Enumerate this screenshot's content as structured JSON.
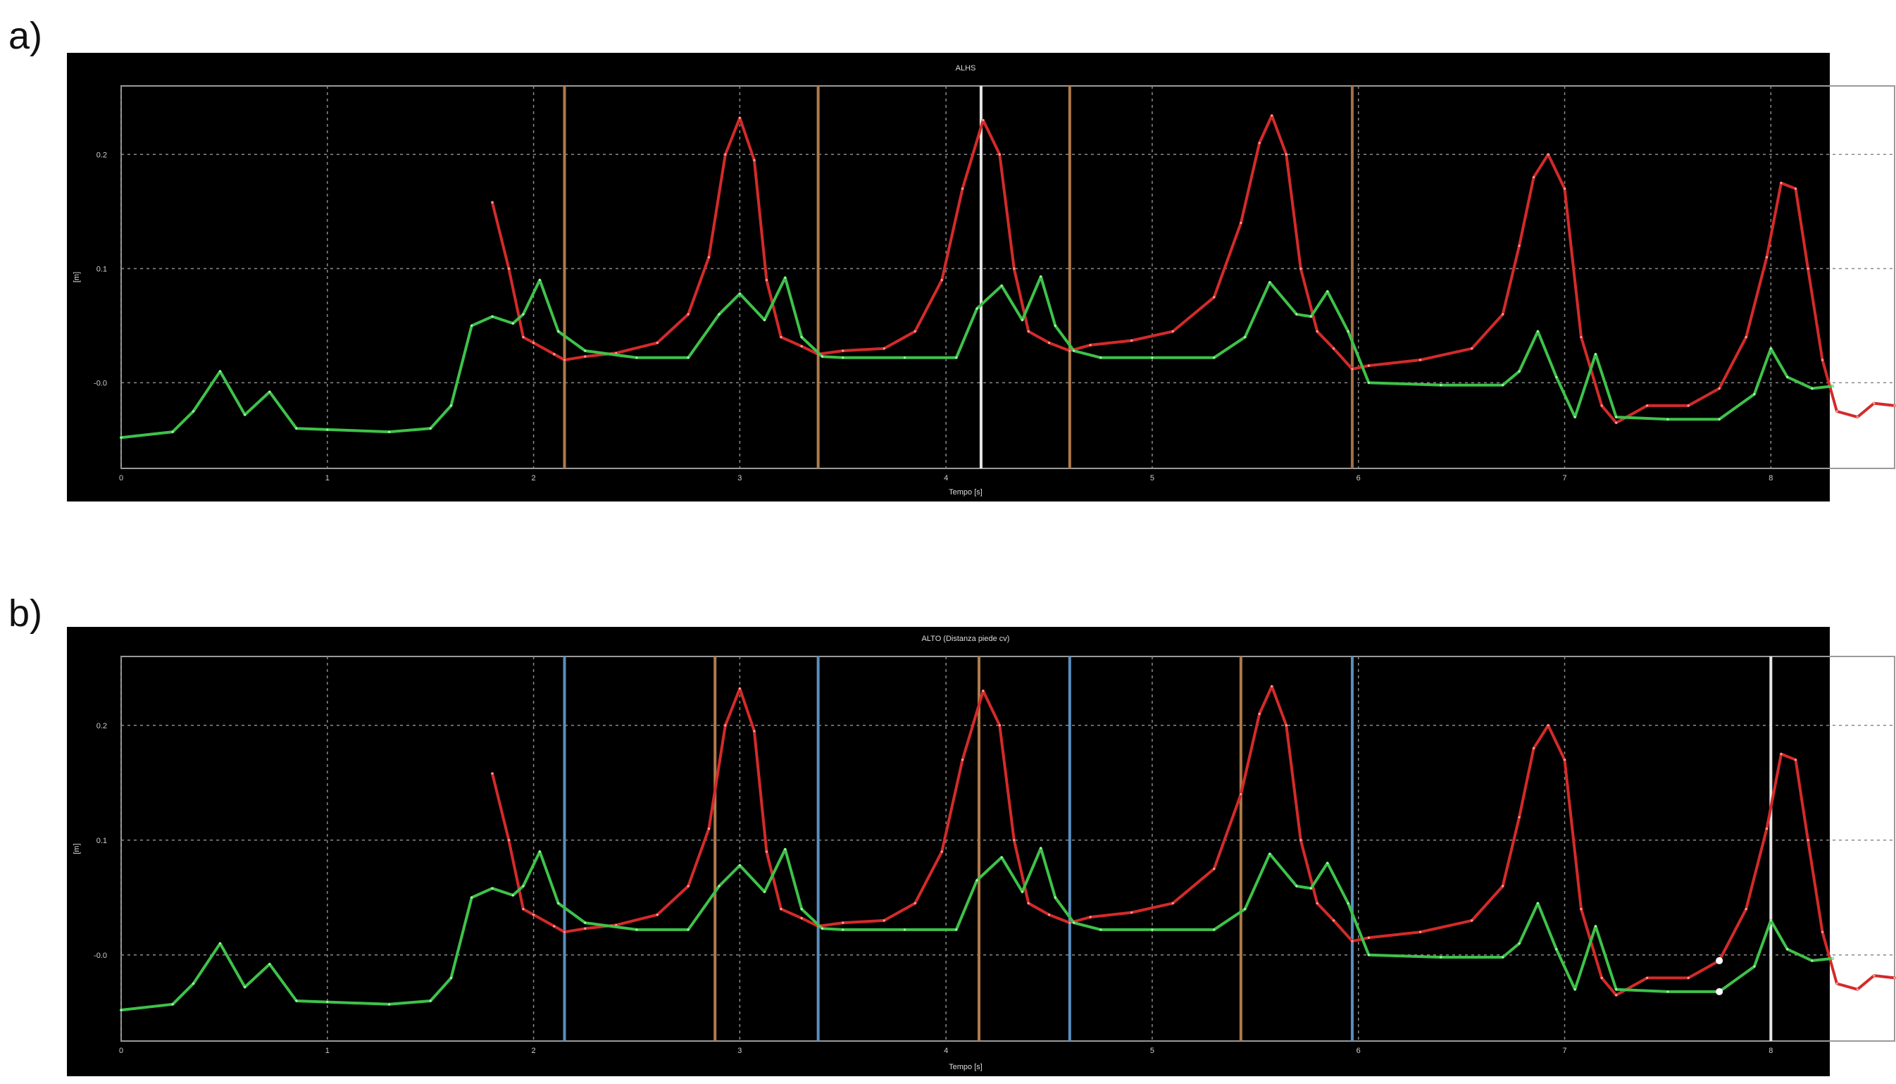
{
  "panels": [
    {
      "label": "a)",
      "title": "ALHS",
      "xlabel": "Tempo [s]",
      "ylabel": "[m]",
      "vlines": [
        {
          "x": 2.15,
          "color": "#b07a4a"
        },
        {
          "x": 3.38,
          "color": "#b07a4a"
        },
        {
          "x": 4.17,
          "color": "#e6e6e6"
        },
        {
          "x": 4.6,
          "color": "#b07a4a"
        },
        {
          "x": 5.97,
          "color": "#a56d48"
        }
      ],
      "markers": []
    },
    {
      "label": "b)",
      "title": "ALTO (Distanza piede cv)",
      "xlabel": "Tempo [s]",
      "ylabel": "[m]",
      "vlines": [
        {
          "x": 2.15,
          "color": "#5a8fbf"
        },
        {
          "x": 2.88,
          "color": "#b07a4a"
        },
        {
          "x": 3.38,
          "color": "#5a8fbf"
        },
        {
          "x": 4.16,
          "color": "#b07a4a"
        },
        {
          "x": 4.6,
          "color": "#5a8fbf"
        },
        {
          "x": 5.43,
          "color": "#b07a4a"
        },
        {
          "x": 5.97,
          "color": "#5a8fbf"
        },
        {
          "x": 8.0,
          "color": "#e6e6e6"
        }
      ],
      "markers": [
        {
          "x": 7.75,
          "y": -0.005
        },
        {
          "x": 7.75,
          "y": -0.032
        }
      ]
    }
  ],
  "chart_data": {
    "type": "line",
    "title": "ALHS",
    "xlabel": "Tempo [s]",
    "ylabel": "[m]",
    "xlim": [
      0,
      8.6
    ],
    "ylim": [
      -0.075,
      0.26
    ],
    "x_ticks": [
      0,
      1,
      2,
      3,
      4,
      5,
      6,
      7,
      8
    ],
    "y_ticks": [
      0.2,
      0.1,
      0.0
    ],
    "y_tick_labels": [
      "0.2",
      "0.1",
      "-0.0"
    ],
    "grid": true,
    "colors": {
      "red": "#d42a2a",
      "green": "#3ec24a",
      "background": "#000000",
      "grid": "#9a9a9a"
    },
    "series": [
      {
        "color": "#d42a2a",
        "x": [
          1.8,
          1.88,
          1.95,
          2.0,
          2.1,
          2.15,
          2.25,
          2.4,
          2.6,
          2.75,
          2.85,
          2.93,
          3.0,
          3.07,
          3.13,
          3.2,
          3.3,
          3.38,
          3.5,
          3.7,
          3.85,
          3.98,
          4.08,
          4.18,
          4.26,
          4.33,
          4.4,
          4.5,
          4.6,
          4.7,
          4.9,
          5.1,
          5.3,
          5.43,
          5.52,
          5.58,
          5.65,
          5.72,
          5.8,
          5.88,
          5.97,
          6.05,
          6.3,
          6.55,
          6.7,
          6.78,
          6.85,
          6.92,
          7.0,
          7.08,
          7.18,
          7.25,
          7.4,
          7.6,
          7.75,
          7.88,
          7.98,
          8.05,
          8.12,
          8.18,
          8.25,
          8.32,
          8.42,
          8.5,
          8.6
        ],
        "y": [
          0.158,
          0.1,
          0.04,
          0.035,
          0.025,
          0.02,
          0.023,
          0.026,
          0.035,
          0.06,
          0.11,
          0.2,
          0.232,
          0.195,
          0.09,
          0.04,
          0.032,
          0.025,
          0.028,
          0.03,
          0.045,
          0.09,
          0.17,
          0.23,
          0.2,
          0.1,
          0.045,
          0.035,
          0.028,
          0.033,
          0.037,
          0.045,
          0.075,
          0.14,
          0.21,
          0.234,
          0.2,
          0.1,
          0.045,
          0.03,
          0.012,
          0.015,
          0.02,
          0.03,
          0.06,
          0.12,
          0.18,
          0.2,
          0.17,
          0.04,
          -0.02,
          -0.035,
          -0.02,
          -0.02,
          -0.005,
          0.04,
          0.11,
          0.175,
          0.17,
          0.1,
          0.02,
          -0.025,
          -0.03,
          -0.018,
          -0.02
        ]
      },
      {
        "color": "#3ec24a",
        "x": [
          0.0,
          0.25,
          0.35,
          0.48,
          0.6,
          0.72,
          0.85,
          1.0,
          1.3,
          1.5,
          1.6,
          1.7,
          1.8,
          1.9,
          1.95,
          2.03,
          2.12,
          2.25,
          2.5,
          2.75,
          2.9,
          3.0,
          3.12,
          3.22,
          3.3,
          3.4,
          3.5,
          3.8,
          4.05,
          4.15,
          4.27,
          4.37,
          4.46,
          4.53,
          4.62,
          4.75,
          5.0,
          5.3,
          5.45,
          5.57,
          5.7,
          5.77,
          5.85,
          5.95,
          6.05,
          6.4,
          6.7,
          6.78,
          6.87,
          6.96,
          7.05,
          7.15,
          7.25,
          7.5,
          7.75,
          7.92,
          8.0,
          8.08,
          8.2,
          8.3
        ],
        "y": [
          -0.048,
          -0.043,
          -0.025,
          0.01,
          -0.028,
          -0.008,
          -0.04,
          -0.041,
          -0.043,
          -0.04,
          -0.02,
          0.05,
          0.058,
          0.052,
          0.06,
          0.09,
          0.045,
          0.028,
          0.022,
          0.022,
          0.06,
          0.078,
          0.055,
          0.092,
          0.04,
          0.023,
          0.022,
          0.022,
          0.022,
          0.065,
          0.085,
          0.055,
          0.093,
          0.05,
          0.028,
          0.022,
          0.022,
          0.022,
          0.04,
          0.088,
          0.06,
          0.058,
          0.08,
          0.045,
          0.0,
          -0.002,
          -0.002,
          0.01,
          0.045,
          0.005,
          -0.03,
          0.025,
          -0.03,
          -0.032,
          -0.032,
          -0.01,
          0.03,
          0.005,
          -0.005,
          -0.003
        ]
      }
    ]
  }
}
